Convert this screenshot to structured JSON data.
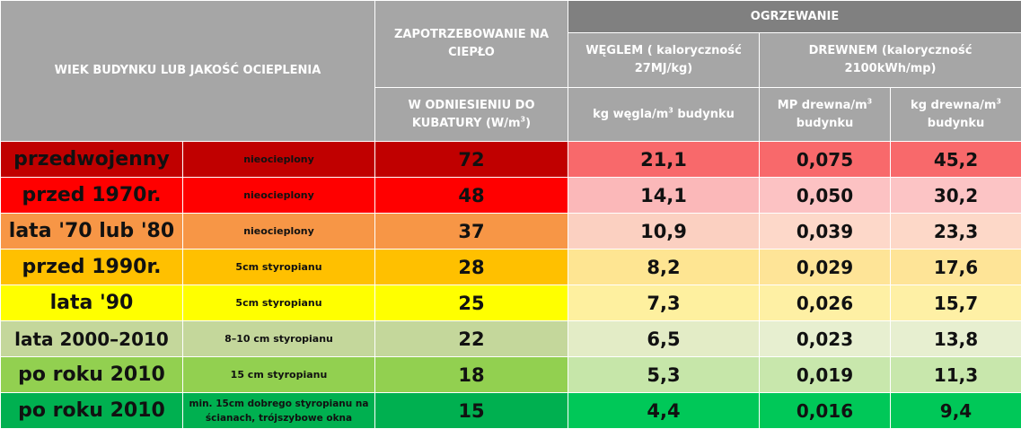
{
  "header": {
    "age_quality": "WIEK BUDYNKU LUB JAKOŚĆ OCIEPLENIA",
    "heat_demand": "ZAPOTRZEBOWANIE NA CIEPŁO",
    "heating": "OGRZEWANIE",
    "coal": "WĘGLEM ( kaloryczność 27MJ/kg)",
    "wood": "DREWNEM (kaloryczność 2100kWh/mp)",
    "per_volume": "W ODNIESIENIU DO KUBATURY (W/m",
    "per_volume_sup": "3",
    "per_volume_end": ")",
    "coal_unit": "kg węgla/m",
    "coal_unit_sup": "3",
    "coal_unit_end": " budynku",
    "wood_mp_unit": "MP drewna/m",
    "wood_mp_unit_sup": "3",
    "wood_mp_unit_end": " budynku",
    "wood_kg_unit": "kg drewna/m",
    "wood_kg_unit_sup": "3",
    "wood_kg_unit_end": " budynku"
  },
  "rows": [
    {
      "age": "przedwojenny",
      "insulation": "nieocieplony",
      "demand": "72",
      "coal": "21,1",
      "wood_mp": "0,075",
      "wood_kg": "45,2"
    },
    {
      "age": "przed 1970r.",
      "insulation": "nieocieplony",
      "demand": "48",
      "coal": "14,1",
      "wood_mp": "0,050",
      "wood_kg": "30,2"
    },
    {
      "age": "lata '70 lub '80",
      "insulation": "nieocieplony",
      "demand": "37",
      "coal": "10,9",
      "wood_mp": "0,039",
      "wood_kg": "23,3"
    },
    {
      "age": "przed 1990r.",
      "insulation": "5cm styropianu",
      "demand": "28",
      "coal": "8,2",
      "wood_mp": "0,029",
      "wood_kg": "17,6"
    },
    {
      "age": "lata '90",
      "insulation": "5cm styropianu",
      "demand": "25",
      "coal": "7,3",
      "wood_mp": "0,026",
      "wood_kg": "15,7"
    },
    {
      "age": "lata 2000–2010",
      "insulation": "8–10 cm styropianu",
      "demand": "22",
      "coal": "6,5",
      "wood_mp": "0,023",
      "wood_kg": "13,8"
    },
    {
      "age": "po roku 2010",
      "insulation": "15 cm styropianu",
      "demand": "18",
      "coal": "5,3",
      "wood_mp": "0,019",
      "wood_kg": "11,3"
    },
    {
      "age": "po roku 2010",
      "insulation": "min. 15cm dobrego styropianu na ścianach, trójszybowe okna",
      "demand": "15",
      "coal": "4,4",
      "wood_mp": "0,016",
      "wood_kg": "9,4"
    }
  ],
  "colors": {
    "header_bg": "#a6a6a6",
    "row_colors": [
      "#c00000",
      "#ff0000",
      "#f79646",
      "#ffc000",
      "#ffff00",
      "#c4d79b",
      "#92d050",
      "#00b050"
    ],
    "coal_colors": [
      "#f8696b",
      "#fbb8b9",
      "#fbd0c1",
      "#fee592",
      "#fef09f",
      "#e3ecc6",
      "#c6e6a9",
      "#00c858"
    ],
    "wood_mp_colors": [
      "#f8696b",
      "#fcc2c3",
      "#fdd8c9",
      "#fee497",
      "#fef0a4",
      "#e7efd0",
      "#c8e7ac",
      "#00c858"
    ],
    "wood_kg_colors": [
      "#f8696b",
      "#fcc4c5",
      "#fdd8c8",
      "#fee497",
      "#fef0a5",
      "#e7efd0",
      "#c8e7ac",
      "#00c858"
    ]
  }
}
